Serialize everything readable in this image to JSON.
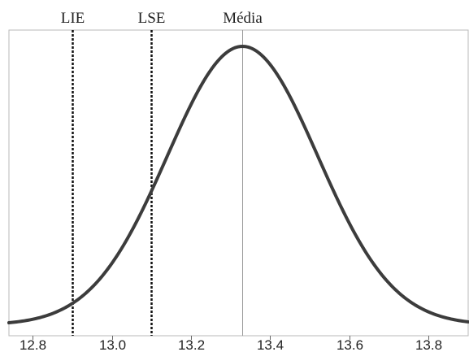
{
  "chart_data": {
    "type": "line",
    "title": "",
    "xlabel": "",
    "ylabel": "",
    "xlim": [
      12.74,
      13.9
    ],
    "x_ticks": [
      12.8,
      13.0,
      13.2,
      13.4,
      13.6,
      13.8
    ],
    "x_tick_labels": [
      "12.8",
      "13.0",
      "13.2",
      "13.4",
      "13.6",
      "13.8"
    ],
    "grid": false,
    "legend": "none",
    "series": [
      {
        "curve": "normal-density",
        "mean": 13.33,
        "std_dev": 0.19,
        "color": "#3c3c3c"
      }
    ],
    "reference_lines": [
      {
        "label": "LIE",
        "x": 12.9,
        "style": "dotted",
        "color": "#111111"
      },
      {
        "label": "LSE",
        "x": 13.1,
        "style": "dotted",
        "color": "#111111"
      },
      {
        "label": "Média",
        "x": 13.33,
        "style": "solid",
        "color": "#999999"
      }
    ]
  }
}
